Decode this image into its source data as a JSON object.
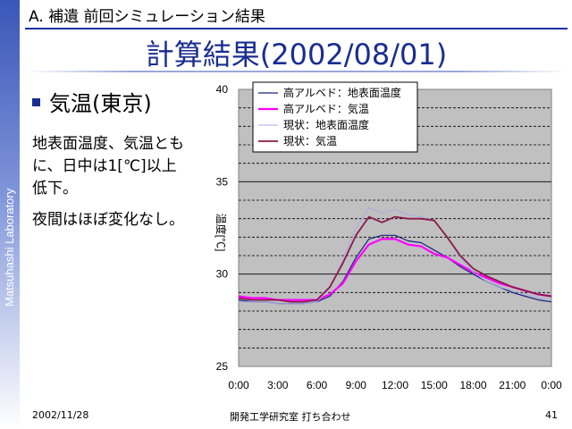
{
  "sidebar": {
    "text": "Matsuhashi Laboratory"
  },
  "header": {
    "section": "A. 補遺 前回シミュレーション結果"
  },
  "slide": {
    "title": "計算結果(2002/08/01)",
    "bullet_heading": "気温(東京)",
    "body_lines": [
      "地表面温度、気温とも",
      "に、日中は1[℃]以上",
      "低下。",
      "夜間はほぼ変化なし。"
    ]
  },
  "footer": {
    "date": "2002/11/28",
    "center": "開発工学研究室 打ち合わせ",
    "page": "41"
  },
  "chart_data": {
    "type": "line",
    "ylabel": "温度[℃]",
    "ylim": [
      25,
      40
    ],
    "yticks": [
      25,
      30,
      35,
      40
    ],
    "xlim": [
      0,
      24
    ],
    "xticks": [
      "0:00",
      "3:00",
      "6:00",
      "9:00",
      "12:00",
      "15:00",
      "18:00",
      "21:00",
      "0:00"
    ],
    "grid": "dashed horizontal every 1",
    "legend": "top-left",
    "x_hours": [
      0,
      1,
      2,
      3,
      4,
      5,
      6,
      7,
      8,
      9,
      10,
      11,
      12,
      13,
      14,
      15,
      16,
      17,
      18,
      19,
      20,
      21,
      22,
      23,
      24
    ],
    "series": [
      {
        "name": "高アルベド：地表面温度",
        "color": "#1a237e",
        "width": 1.2,
        "values": [
          28.6,
          28.5,
          28.5,
          28.4,
          28.4,
          28.4,
          28.5,
          28.8,
          29.6,
          30.9,
          31.9,
          32.1,
          32.1,
          31.8,
          31.7,
          31.3,
          30.9,
          30.4,
          30.0,
          29.6,
          29.3,
          29.0,
          28.8,
          28.6,
          28.5
        ]
      },
      {
        "name": "高アルベド：気温",
        "color": "#ff00ff",
        "width": 2.2,
        "values": [
          28.8,
          28.7,
          28.7,
          28.6,
          28.6,
          28.6,
          28.6,
          28.9,
          29.5,
          30.7,
          31.6,
          31.9,
          31.9,
          31.6,
          31.5,
          31.1,
          30.9,
          30.5,
          30.1,
          29.8,
          29.5,
          29.3,
          29.1,
          28.9,
          28.8
        ]
      },
      {
        "name": "現状：地表面温度",
        "color": "#a8a8e8",
        "width": 1.0,
        "values": [
          28.5,
          28.5,
          28.5,
          28.4,
          28.4,
          28.4,
          28.5,
          29.2,
          30.8,
          32.5,
          33.6,
          33.3,
          33.5,
          33.2,
          33.1,
          32.9,
          32.0,
          30.9,
          30.1,
          29.6,
          29.3,
          29.1,
          28.9,
          28.7,
          28.6
        ]
      },
      {
        "name": "現状：気温",
        "color": "#8b1a4a",
        "width": 1.8,
        "values": [
          28.7,
          28.6,
          28.6,
          28.6,
          28.5,
          28.5,
          28.6,
          29.3,
          30.6,
          32.1,
          33.1,
          32.8,
          33.1,
          33.0,
          33.0,
          32.9,
          32.0,
          31.0,
          30.3,
          29.9,
          29.6,
          29.3,
          29.1,
          28.9,
          28.8
        ]
      }
    ]
  }
}
